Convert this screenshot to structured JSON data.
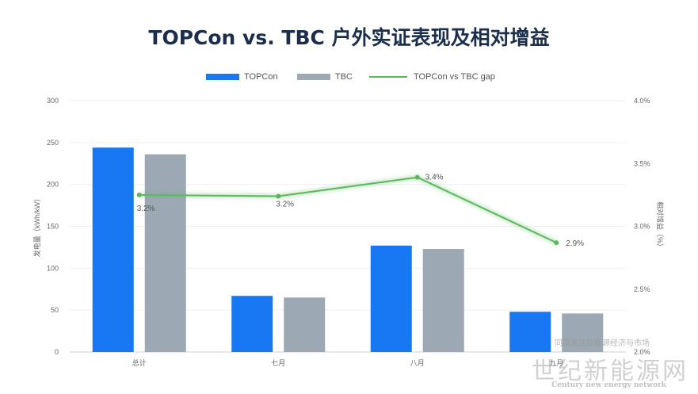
{
  "chart_data": {
    "type": "bar",
    "title": "TOPCon vs. TBC 户外实证表现及相对增益",
    "categories": [
      "总计",
      "七月",
      "八月",
      "九月"
    ],
    "series": [
      {
        "name": "TOPCon",
        "type": "bar",
        "axis": "left",
        "color": "#1877f2",
        "values": [
          244,
          67,
          127,
          48
        ]
      },
      {
        "name": "TBC",
        "type": "bar",
        "axis": "left",
        "color": "#9ca8b4",
        "values": [
          236,
          65,
          123,
          46
        ]
      },
      {
        "name": "TOPCon vs TBC gap",
        "type": "line",
        "axis": "right",
        "color": "#5cb85c",
        "values": [
          3.25,
          3.24,
          3.39,
          2.87
        ],
        "labels": [
          "3.2%",
          "3.2%",
          "3.4%",
          "2.9%"
        ]
      }
    ],
    "ylabel": "发电量（kWh/kW）",
    "y2label": "相对增益（%）",
    "ylim": [
      0,
      300
    ],
    "y2lim": [
      2.0,
      4.0
    ],
    "yticks": [
      "300",
      "250",
      "200",
      "150",
      "100",
      "50",
      "0"
    ],
    "y2ticks": [
      "4.0%",
      "3.5%",
      "3.0%",
      "2.5%",
      "2.0%"
    ],
    "legend_position": "top-center",
    "grid": true
  },
  "watermark": {
    "top_text": "同度关注新能源经济与市场",
    "main_text": "世纪新能源网",
    "sub_text": "Century new energy network"
  }
}
